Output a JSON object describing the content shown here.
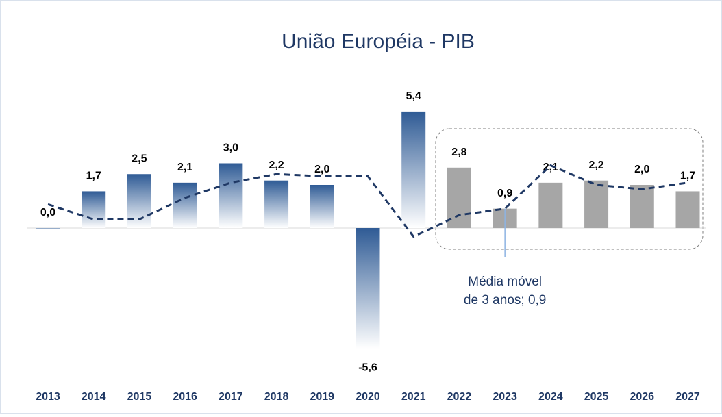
{
  "chart_data": {
    "type": "bar",
    "title": "União Européia - PIB",
    "categories": [
      "2013",
      "2014",
      "2015",
      "2016",
      "2017",
      "2018",
      "2019",
      "2020",
      "2021",
      "2022",
      "2023",
      "2024",
      "2025",
      "2026",
      "2027"
    ],
    "values": [
      0.0,
      1.7,
      2.5,
      2.1,
      3.0,
      2.2,
      2.0,
      -5.6,
      5.4,
      2.8,
      0.9,
      2.1,
      2.2,
      2.0,
      1.7
    ],
    "value_labels": [
      "0,0",
      "1,7",
      "2,5",
      "2,1",
      "3,0",
      "2,2",
      "2,0",
      "-5,6",
      "5,4",
      "2,8",
      "0,9",
      "2,1",
      "2,2",
      "2,0",
      "1,7"
    ],
    "bar_colors": [
      "#2f5b95",
      "#2f5b95",
      "#2f5b95",
      "#2f5b95",
      "#2f5b95",
      "#2f5b95",
      "#2f5b95",
      "#2f5b95",
      "#2f5b95",
      "#a6a6a6",
      "#a6a6a6",
      "#a6a6a6",
      "#a6a6a6",
      "#a6a6a6",
      "#a6a6a6"
    ],
    "line": {
      "values": [
        1.1,
        0.4,
        0.4,
        1.4,
        2.1,
        2.5,
        2.4,
        2.4,
        -0.4,
        0.6,
        0.9,
        2.9,
        2.0,
        1.8,
        2.1
      ],
      "color": "#1f3864"
    },
    "annotation": {
      "lines": [
        "Média móvel",
        "de 3 anos; 0,9"
      ],
      "index": 10
    },
    "ylim": [
      -6,
      6
    ]
  }
}
